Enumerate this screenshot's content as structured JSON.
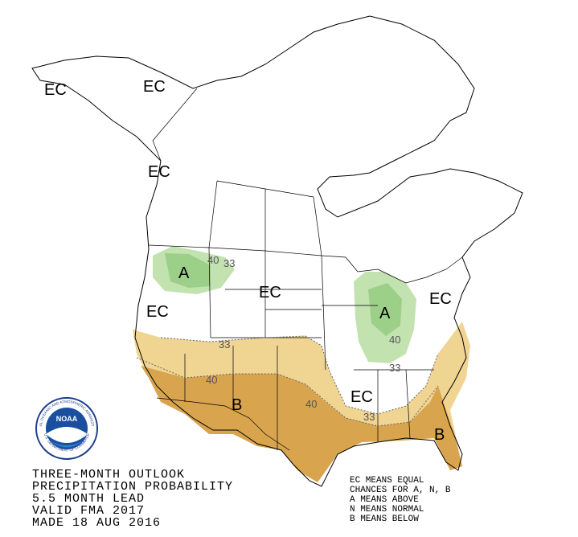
{
  "map_labels": [
    "EC",
    "EC",
    "EC",
    "A",
    "40",
    "33",
    "EC",
    "EC",
    "A",
    "40",
    "EC",
    "33",
    "40",
    "B",
    "40",
    "EC",
    "33",
    "33",
    "B"
  ],
  "footer": {
    "lines": [
      "THREE-MONTH OUTLOOK",
      "PRECIPITATION PROBABILITY",
      "5.5 MONTH LEAD",
      "VALID FMA 2017",
      "MADE 18 AUG 2016"
    ]
  },
  "legend": {
    "lines": [
      "EC MEANS EQUAL",
      "CHANCES FOR A, N, B",
      "A MEANS ABOVE",
      "N MEANS NORMAL",
      "B MEANS BELOW"
    ]
  },
  "logo": {
    "name": "NOAA",
    "ring_top": "NATIONAL OCEANIC AND ATMOSPHERIC ADMINISTRATION",
    "ring_bottom": "U.S. DEPARTMENT OF COMMERCE"
  }
}
